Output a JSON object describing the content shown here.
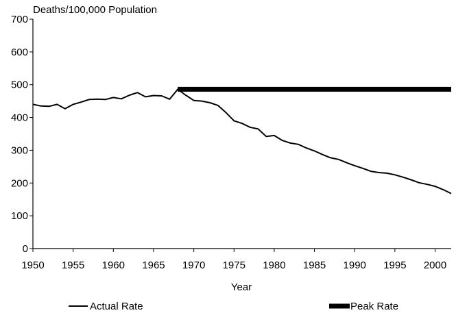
{
  "chart_data": {
    "type": "line",
    "title": "",
    "ylabel": "Deaths/100,000 Population",
    "xlabel": "Year",
    "xlim": [
      1950,
      2002
    ],
    "ylim": [
      0,
      700
    ],
    "x_ticks": [
      1950,
      1955,
      1960,
      1965,
      1970,
      1975,
      1980,
      1985,
      1990,
      1995,
      2000
    ],
    "y_ticks": [
      0,
      100,
      200,
      300,
      400,
      500,
      600,
      700
    ],
    "grid": false,
    "legend_position": "bottom",
    "series": [
      {
        "name": "Actual Rate",
        "color": "#000000",
        "style": "thin",
        "x": [
          1950,
          1951,
          1952,
          1953,
          1954,
          1955,
          1956,
          1957,
          1958,
          1959,
          1960,
          1961,
          1962,
          1963,
          1964,
          1965,
          1966,
          1967,
          1968,
          1969,
          1970,
          1971,
          1972,
          1973,
          1974,
          1975,
          1976,
          1977,
          1978,
          1979,
          1980,
          1981,
          1982,
          1983,
          1984,
          1985,
          1986,
          1987,
          1988,
          1989,
          1990,
          1991,
          1992,
          1993,
          1994,
          1995,
          1996,
          1997,
          1998,
          1999,
          2000,
          2001,
          2002
        ],
        "values": [
          440,
          435,
          434,
          440,
          427,
          440,
          447,
          455,
          456,
          455,
          461,
          457,
          468,
          476,
          463,
          467,
          466,
          456,
          486,
          468,
          452,
          450,
          445,
          437,
          415,
          390,
          382,
          370,
          365,
          342,
          345,
          330,
          322,
          318,
          307,
          298,
          287,
          277,
          272,
          262,
          253,
          245,
          236,
          232,
          230,
          225,
          218,
          210,
          201,
          196,
          190,
          180,
          168
        ]
      },
      {
        "name": "Peak Rate",
        "color": "#000000",
        "style": "thick",
        "x": [
          1968,
          2002
        ],
        "values": [
          486,
          486
        ]
      }
    ]
  }
}
